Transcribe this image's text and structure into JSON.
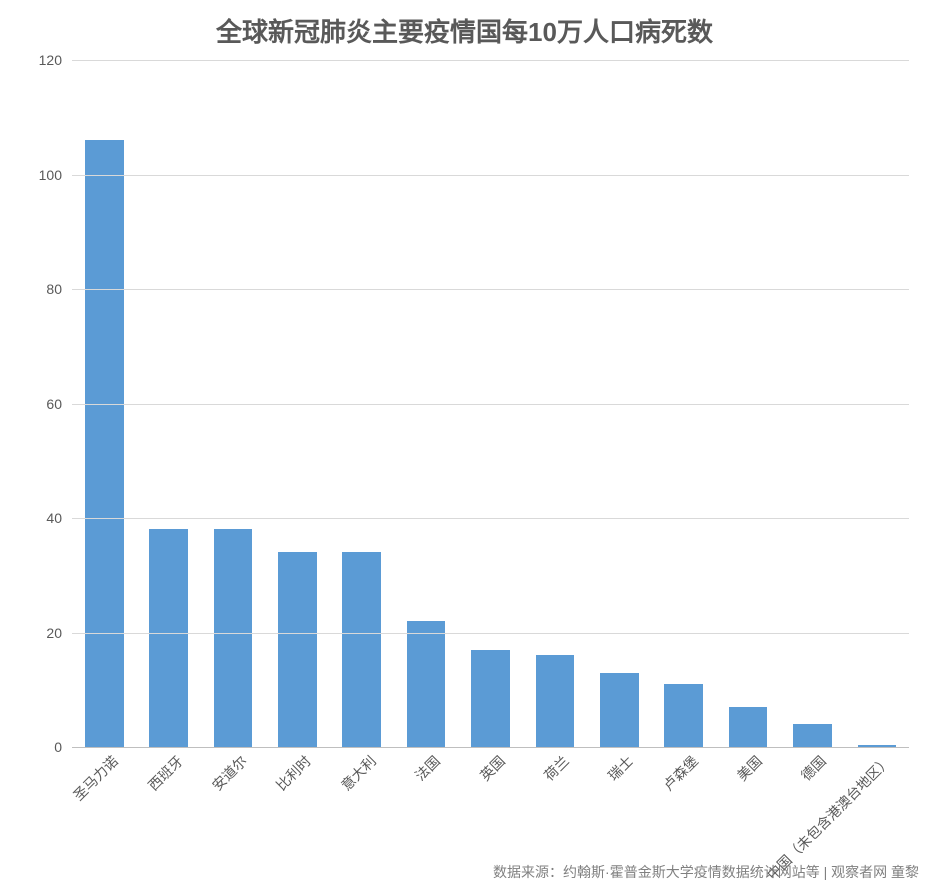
{
  "chart": {
    "type": "bar",
    "title": "全球新冠肺炎主要疫情国每10万人口病死数",
    "title_fontsize": 26,
    "title_color": "#595959",
    "categories": [
      "圣马力诺",
      "西班牙",
      "安道尔",
      "比利时",
      "意大利",
      "法国",
      "英国",
      "荷兰",
      "瑞士",
      "卢森堡",
      "美国",
      "德国",
      "中国（未包含港澳台地区）"
    ],
    "values": [
      106,
      38,
      38,
      34,
      34,
      22,
      17,
      16,
      13,
      11,
      7,
      4,
      0.3
    ],
    "bar_color": "#5b9bd5",
    "bar_width_ratio": 0.6,
    "background_color": "#ffffff",
    "grid_color": "#d9d9d9",
    "axis_line_color": "#bfbfbf",
    "ylim": [
      0,
      120
    ],
    "ytick_step": 20,
    "yticks": [
      0,
      20,
      40,
      60,
      80,
      100,
      120
    ],
    "tick_fontsize": 14,
    "tick_color": "#595959",
    "xlabel_rotation": -45,
    "xlabel_fontsize": 14
  },
  "caption": {
    "text": "数据来源：约翰斯·霍普金斯大学疫情数据统计网站等 | 观察者网 童黎",
    "fontsize": 14,
    "color": "#808080"
  }
}
